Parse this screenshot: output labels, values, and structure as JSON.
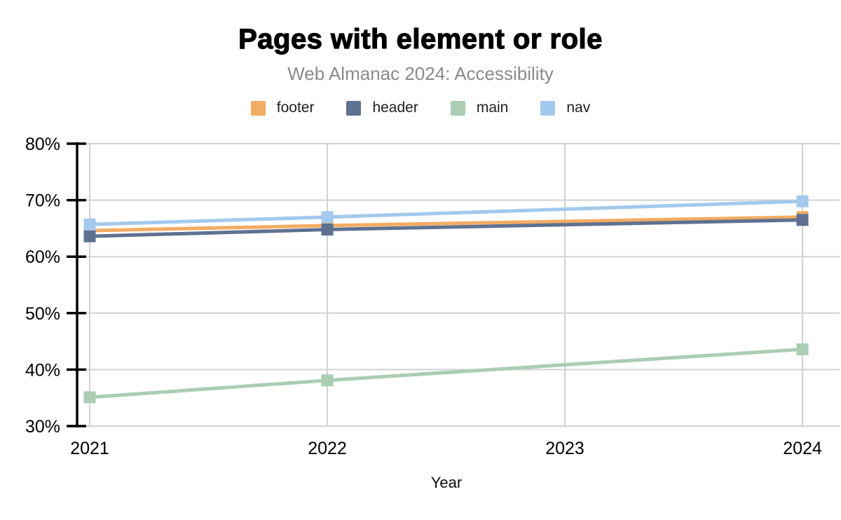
{
  "chart_data": {
    "type": "line",
    "title": "Pages with element or role",
    "subtitle": "Web Almanac 2024: Accessibility",
    "xlabel": "Year",
    "x": [
      2021,
      2022,
      2023,
      2024
    ],
    "x_tick_labels": [
      "2021",
      "2022",
      "2023",
      "2024"
    ],
    "y_ticks": [
      30,
      40,
      50,
      60,
      70,
      80
    ],
    "y_tick_labels": [
      "30%",
      "40%",
      "50%",
      "60%",
      "70%",
      "80%"
    ],
    "ylim": [
      30,
      80
    ],
    "grid": true,
    "legend_position": "top",
    "marker": "square",
    "grid_color": "#d2d2d2",
    "axis_color": "#000000",
    "series": [
      {
        "name": "footer",
        "color": "#F3AC63",
        "values": [
          64.6,
          65.5,
          null,
          67.0
        ]
      },
      {
        "name": "header",
        "color": "#5E7191",
        "values": [
          63.6,
          64.8,
          null,
          66.5
        ]
      },
      {
        "name": "main",
        "color": "#ABCDB4",
        "values": [
          35.1,
          38.1,
          null,
          43.6
        ]
      },
      {
        "name": "nav",
        "color": "#A3C9EC",
        "values": [
          65.7,
          67.0,
          null,
          69.8
        ]
      }
    ]
  }
}
